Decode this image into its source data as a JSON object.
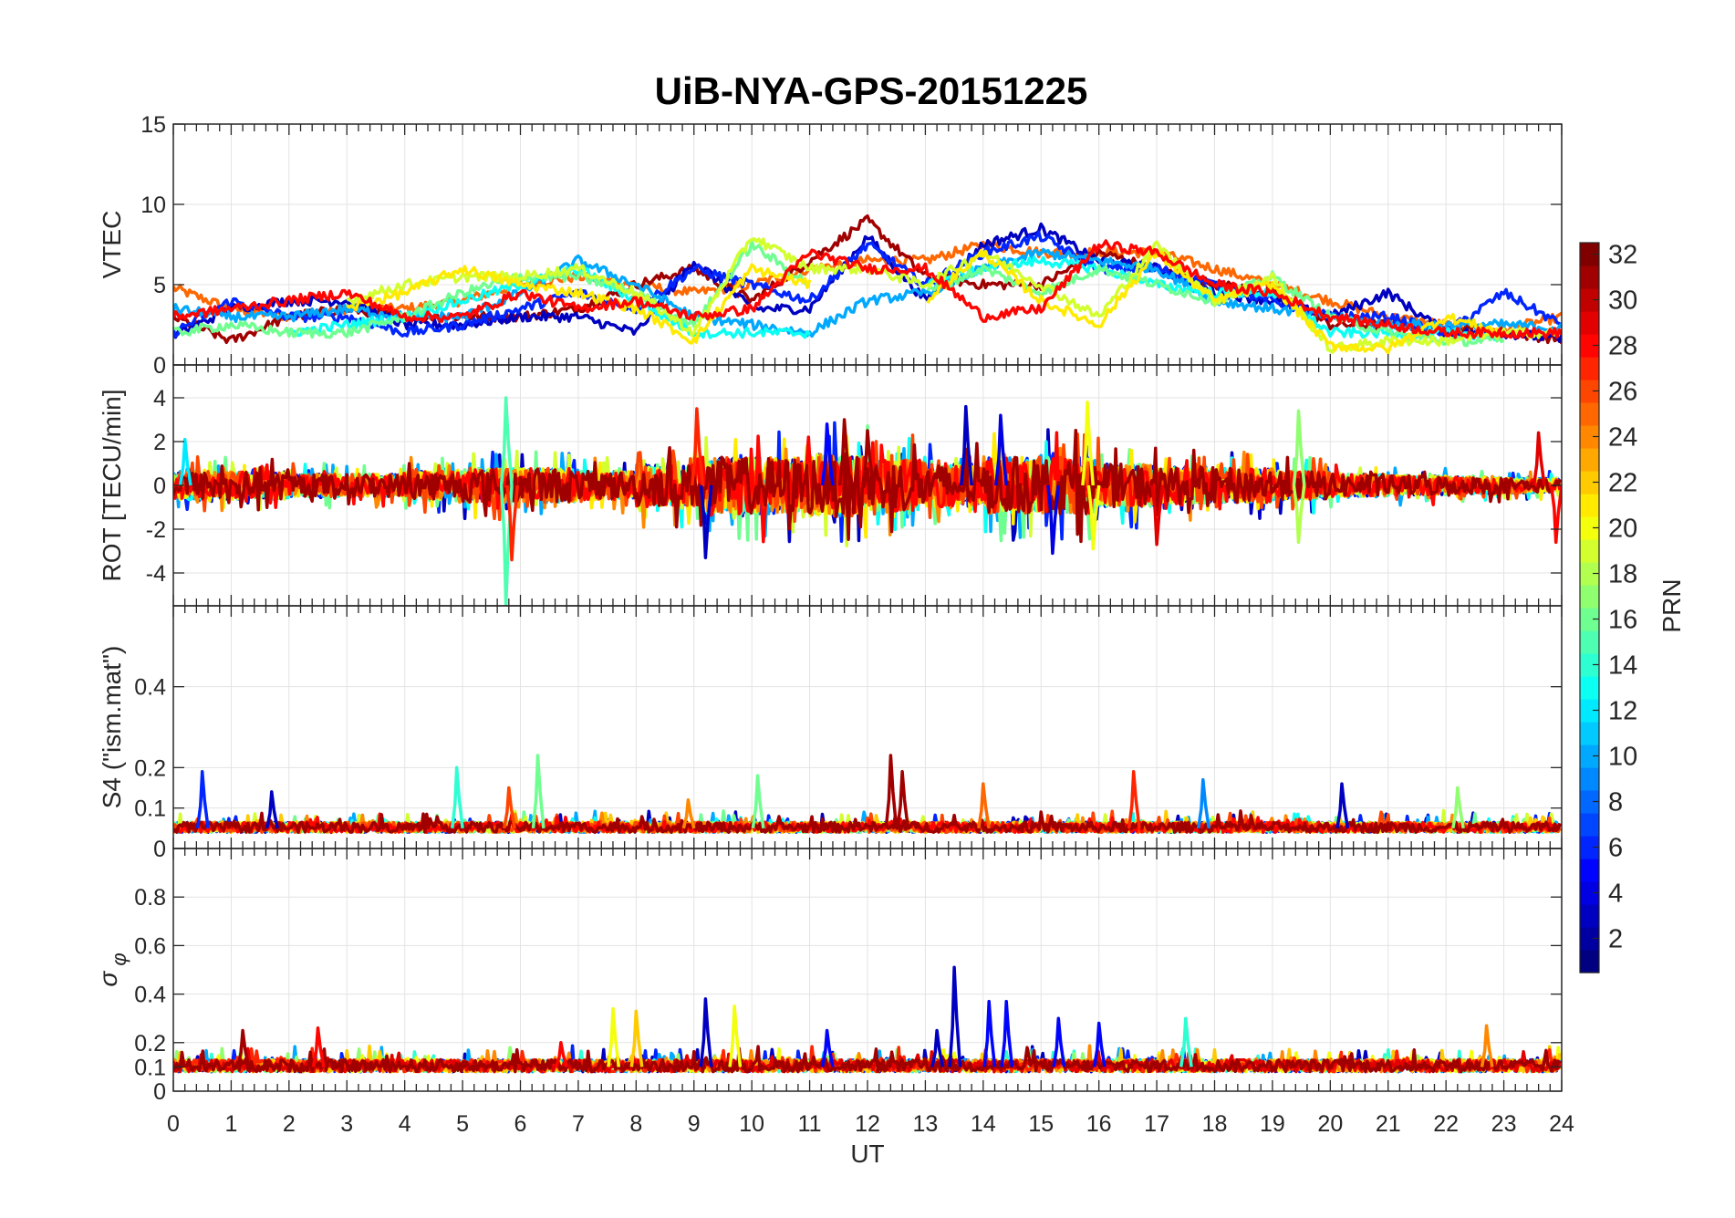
{
  "chart_data": {
    "type": "line",
    "title": "UiB-NYA-GPS-20151225",
    "xlabel": "UT",
    "xlim": [
      0,
      24
    ],
    "xticks": [
      0,
      1,
      2,
      3,
      4,
      5,
      6,
      7,
      8,
      9,
      10,
      11,
      12,
      13,
      14,
      15,
      16,
      17,
      18,
      19,
      20,
      21,
      22,
      23,
      24
    ],
    "grid": true,
    "colorbar": {
      "label": "PRN",
      "range": [
        1,
        32
      ],
      "ticks": [
        2,
        4,
        6,
        8,
        10,
        12,
        14,
        16,
        18,
        20,
        22,
        24,
        26,
        28,
        30,
        32
      ],
      "colormap": "jet",
      "placement": "right"
    },
    "panels": [
      {
        "id": "vtec",
        "ylabel": "VTEC",
        "ylim": [
          0,
          15
        ],
        "yticks": [
          0,
          5,
          10,
          15
        ],
        "series_hourly": [
          {
            "prn": 25,
            "values": [
              4.8,
              3.5,
              3,
              3.5,
              3.5,
              4,
              5,
              5.5,
              5,
              4.5,
              5,
              6,
              6.5,
              6.5,
              7.5,
              7,
              7,
              7,
              6,
              5,
              4,
              3,
              2.5,
              2.2,
              3
            ]
          },
          {
            "prn": 31,
            "values": [
              3,
              1.5,
              3,
              3.5,
              3,
              3,
              3,
              3.5,
              5,
              6,
              4,
              6.5,
              9,
              5.5,
              5,
              5,
              7,
              6,
              5,
              4.5,
              2.5,
              2.5,
              2.3,
              2,
              1.6
            ]
          },
          {
            "prn": 3,
            "values": [
              1.8,
              3.5,
              4,
              4,
              2.5,
              2.5,
              3,
              3,
              2,
              6.5,
              3.5,
              3.5,
              8,
              4,
              7.5,
              8.5,
              6.5,
              6,
              4.5,
              4,
              3,
              4.5,
              2,
              2,
              1.6
            ]
          },
          {
            "prn": 6,
            "values": [
              2,
              4,
              3,
              3,
              2,
              2.5,
              3.5,
              4.5,
              3.5,
              6,
              5,
              4,
              7.5,
              5,
              7,
              8,
              6,
              6,
              5,
              4,
              3,
              3,
              2,
              4.5,
              2.5
            ]
          },
          {
            "prn": 10,
            "values": [
              3.5,
              3,
              3,
              3.5,
              3,
              3,
              4.5,
              6.5,
              5,
              3,
              2.5,
              2,
              4,
              4.5,
              6,
              7,
              6.5,
              6,
              4,
              3.5,
              3,
              2.5,
              2.5,
              2.5,
              2.3
            ]
          },
          {
            "prn": 13,
            "values": [
              null,
              null,
              2,
              2.5,
              3,
              4,
              5,
              6,
              4,
              2,
              2,
              2,
              null,
              5,
              6,
              6.5,
              6,
              5,
              4.5,
              4.5,
              2,
              2,
              2,
              1.8,
              null
            ]
          },
          {
            "prn": 16,
            "values": [
              2,
              2.5,
              2,
              2,
              3,
              4.5,
              5.5,
              5.5,
              4.5,
              2.5,
              7.5,
              5,
              null,
              4.5,
              6,
              4.5,
              6,
              5,
              4,
              5.5,
              3,
              2,
              1.5,
              1.5,
              null
            ]
          },
          {
            "prn": 19,
            "values": [
              null,
              null,
              null,
              4,
              5,
              5.5,
              5.5,
              6,
              4.5,
              2,
              8,
              6,
              6,
              5,
              7,
              5,
              3,
              7.5,
              4,
              5.5,
              1,
              1.5,
              1.5,
              2,
              2
            ]
          },
          {
            "prn": 21,
            "values": [
              null,
              null,
              null,
              3.5,
              4.5,
              6,
              5,
              4.5,
              3.5,
              1.5,
              6,
              5,
              null,
              4,
              7,
              4,
              2.5,
              7,
              4,
              5,
              1.2,
              1,
              3,
              2,
              null
            ]
          },
          {
            "prn": 28,
            "values": [
              3,
              3.5,
              4,
              4.5,
              3,
              3,
              4.5,
              3.5,
              4,
              3,
              3.5,
              7,
              6,
              6,
              3,
              3.5,
              7.5,
              7,
              5,
              4.5,
              3,
              2.5,
              2,
              2,
              2
            ]
          }
        ]
      },
      {
        "id": "rot",
        "ylabel": "ROT [TECU/min]",
        "ylim": [
          -5.5,
          5.5
        ],
        "yticks": [
          -4,
          -2,
          0,
          2,
          4
        ],
        "activity_envelope_hourly": [
          1,
          1,
          0.8,
          0.8,
          1,
          1.2,
          1.2,
          1,
          1.5,
          2,
          2,
          2.2,
          1.8,
          1.5,
          2,
          2,
          1.5,
          1.3,
          1.2,
          1,
          0.8,
          0.7,
          0.6,
          0.5,
          1
        ],
        "prns": [
          3,
          6,
          10,
          13,
          16,
          19,
          21,
          24,
          26,
          28,
          31
        ],
        "spikes": [
          [
            5.75,
            4.0,
            15
          ],
          [
            5.75,
            -5.5,
            15
          ],
          [
            5.85,
            -3.4,
            27
          ],
          [
            9.05,
            3.5,
            27
          ],
          [
            9.2,
            -3.3,
            3
          ],
          [
            11.3,
            2.8,
            5
          ],
          [
            11.6,
            3.0,
            31
          ],
          [
            12.0,
            2.5,
            31
          ],
          [
            13.7,
            3.6,
            3
          ],
          [
            14.3,
            3.2,
            4
          ],
          [
            15.2,
            -3.1,
            4
          ],
          [
            15.8,
            3.8,
            20
          ],
          [
            15.9,
            -2.9,
            20
          ],
          [
            17.0,
            -2.7,
            29
          ],
          [
            19.45,
            3.4,
            17
          ],
          [
            19.45,
            -2.6,
            18
          ],
          [
            23.6,
            2.4,
            29
          ],
          [
            23.9,
            -2.6,
            28
          ],
          [
            0.2,
            2.1,
            12
          ]
        ]
      },
      {
        "id": "s4",
        "ylabel": "S4 (\"ism.mat\")",
        "ylim": [
          0,
          0.6
        ],
        "yticks": [
          0,
          0.1,
          0.2,
          0.4
        ],
        "baseline": 0.05,
        "prns": [
          3,
          6,
          10,
          13,
          16,
          19,
          22,
          24,
          26,
          28,
          31
        ],
        "spikes": [
          [
            0.5,
            0.19,
            6
          ],
          [
            1.7,
            0.14,
            3
          ],
          [
            4.9,
            0.2,
            14
          ],
          [
            5.8,
            0.15,
            26
          ],
          [
            6.3,
            0.23,
            16
          ],
          [
            8.9,
            0.12,
            24
          ],
          [
            10.1,
            0.18,
            16
          ],
          [
            12.4,
            0.23,
            31
          ],
          [
            12.6,
            0.19,
            31
          ],
          [
            14.0,
            0.16,
            25
          ],
          [
            16.6,
            0.19,
            27
          ],
          [
            17.8,
            0.17,
            9
          ],
          [
            20.2,
            0.16,
            3
          ],
          [
            22.2,
            0.15,
            17
          ]
        ]
      },
      {
        "id": "sigma",
        "ylabel": "σφ",
        "ylim": [
          0,
          1
        ],
        "yticks": [
          0,
          0.1,
          0.2,
          0.4,
          0.6,
          0.8
        ],
        "baseline": 0.1,
        "prns": [
          3,
          6,
          10,
          14,
          17,
          20,
          22,
          24,
          27,
          29,
          31
        ],
        "spikes": [
          [
            1.2,
            0.25,
            31
          ],
          [
            2.5,
            0.26,
            28
          ],
          [
            6.7,
            0.2,
            28
          ],
          [
            7.6,
            0.34,
            20
          ],
          [
            8.0,
            0.33,
            22
          ],
          [
            9.2,
            0.38,
            3
          ],
          [
            9.7,
            0.35,
            20
          ],
          [
            11.3,
            0.25,
            5
          ],
          [
            13.2,
            0.25,
            3
          ],
          [
            13.5,
            0.51,
            3
          ],
          [
            14.1,
            0.37,
            5
          ],
          [
            14.4,
            0.37,
            5
          ],
          [
            15.3,
            0.3,
            5
          ],
          [
            16.0,
            0.28,
            5
          ],
          [
            17.5,
            0.3,
            14
          ],
          [
            22.7,
            0.27,
            24
          ]
        ]
      }
    ]
  }
}
